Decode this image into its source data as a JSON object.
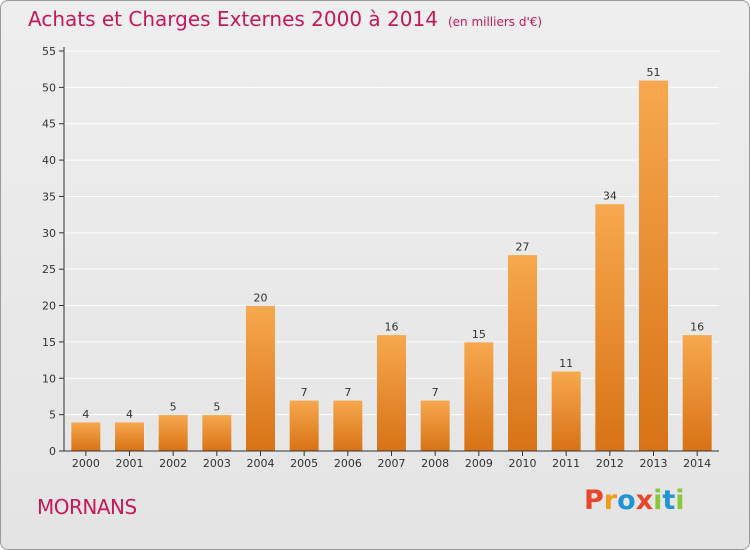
{
  "header": {
    "title": "Achats et Charges Externes 2000 à 2014",
    "unit": "(en milliers d'€)"
  },
  "footer": {
    "commune": "MORNANS",
    "logo_text": "Proxiti"
  },
  "colors": {
    "title": "#c8185a",
    "bar_light": "#f7a84e",
    "bar_dark": "#d87216",
    "axis": "#333333",
    "grid": "#ffffff",
    "logo_letters": [
      "#e8462c",
      "#f29a1d",
      "#1f93d6",
      "#e8462c",
      "#8cc63f",
      "#1f93d6",
      "#8cc63f"
    ]
  },
  "chart_data": {
    "type": "bar",
    "title": "Achats et Charges Externes 2000 à 2014",
    "subtitle": "(en milliers d'€)",
    "categories": [
      "2000",
      "2001",
      "2002",
      "2003",
      "2004",
      "2005",
      "2006",
      "2007",
      "2008",
      "2009",
      "2010",
      "2011",
      "2012",
      "2013",
      "2014"
    ],
    "values": [
      4,
      4,
      5,
      5,
      20,
      7,
      7,
      16,
      7,
      15,
      27,
      11,
      34,
      51,
      16
    ],
    "ylim": [
      0,
      55
    ],
    "yticks": [
      0,
      5,
      10,
      15,
      20,
      25,
      30,
      35,
      40,
      45,
      50,
      55
    ],
    "grid": true,
    "data_labels": true
  }
}
